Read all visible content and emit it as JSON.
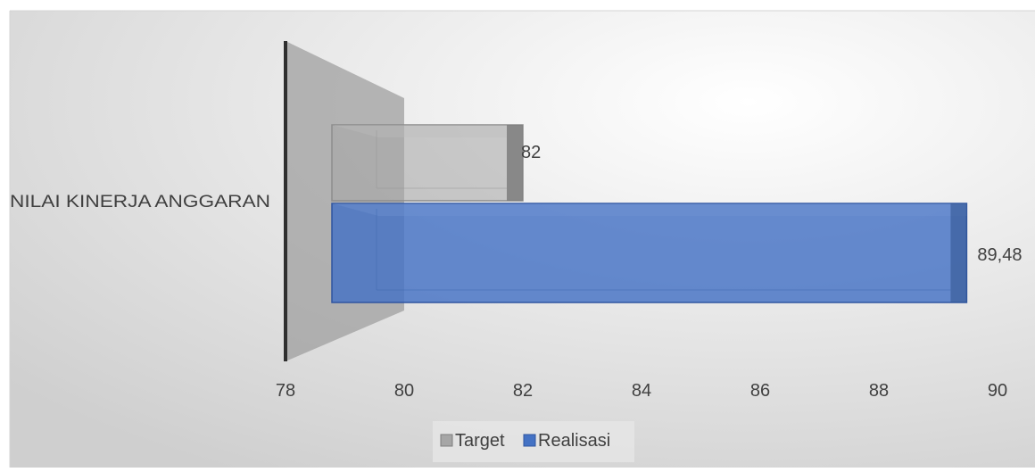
{
  "chart_data": {
    "type": "bar",
    "orientation": "horizontal",
    "style": "3d-clustered",
    "categories": [
      "NILAI KINERJA ANGGARAN"
    ],
    "series": [
      {
        "name": "Target",
        "values": [
          82
        ],
        "color": "#a6a6a6",
        "data_labels": [
          "82"
        ]
      },
      {
        "name": "Realisasi",
        "values": [
          89.48
        ],
        "color": "#4472c4",
        "data_labels": [
          "89,48"
        ]
      }
    ],
    "xlim": [
      78,
      90
    ],
    "x_ticks": [
      "78",
      "80",
      "82",
      "84",
      "86",
      "88",
      "90"
    ],
    "title": "",
    "xlabel": "",
    "ylabel": "",
    "grid": false,
    "legend_position": "bottom"
  }
}
